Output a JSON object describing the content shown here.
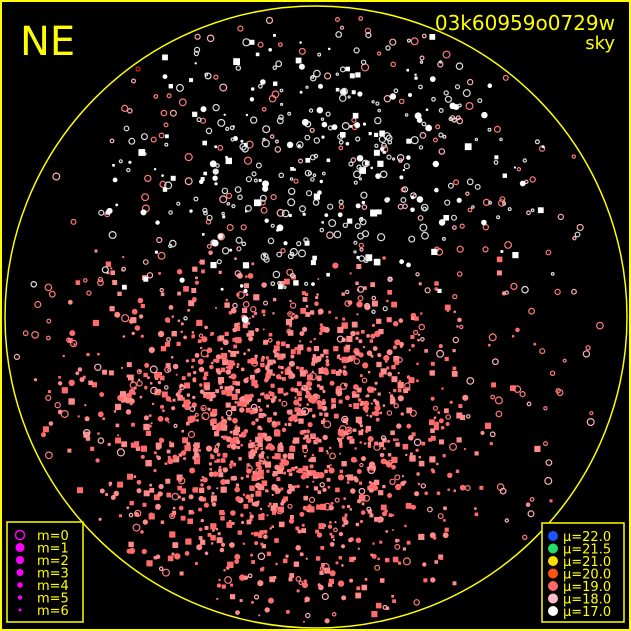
{
  "chart_data": {
    "type": "scatter",
    "orientation_label": "NE",
    "field_id": "03k60959o0729w",
    "field_type": "sky",
    "grid": false,
    "size_legend": {
      "placement": "bottom-left",
      "entries": [
        "m=0",
        "m=1",
        "m=2",
        "m=3",
        "m=4",
        "m=5",
        "m=6"
      ]
    },
    "color_legend": {
      "placement": "bottom-right",
      "entries": [
        {
          "label": "μ=22.0",
          "color": "#1a55ff"
        },
        {
          "label": "μ=21.5",
          "color": "#22dd66"
        },
        {
          "label": "μ=21.0",
          "color": "#ffdd00"
        },
        {
          "label": "μ=20.0",
          "color": "#ff5511"
        },
        {
          "label": "μ=19.0",
          "color": "#ff6666"
        },
        {
          "label": "μ=18.0",
          "color": "#ffbbcc"
        },
        {
          "label": "μ=17.0",
          "color": "#ffffff"
        }
      ]
    },
    "colors": {
      "frame": "#ffff00",
      "background": "#000000",
      "legend_marker": "#ff00ff"
    }
  }
}
